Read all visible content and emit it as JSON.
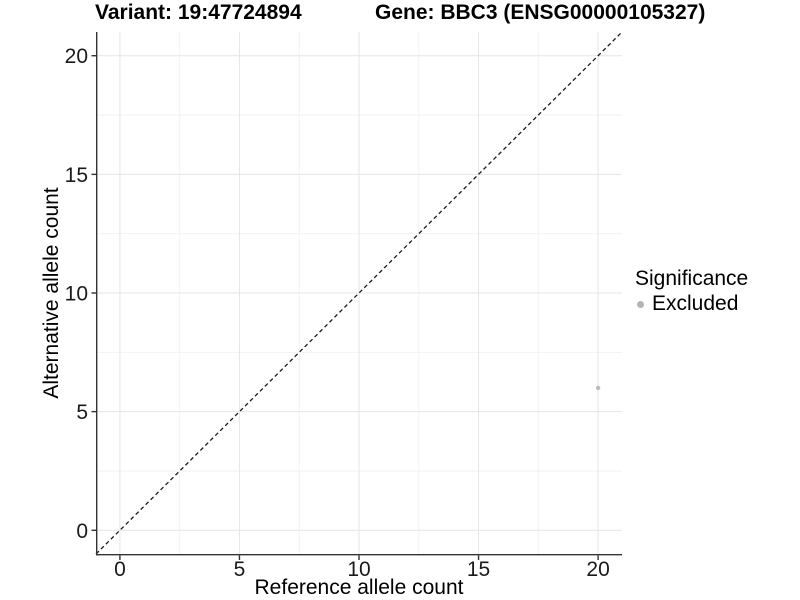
{
  "chart_data": {
    "type": "scatter",
    "title_left": "Variant: 19:47724894",
    "title_right": "Gene: BBC3 (ENSG00000105327)",
    "xlabel": "Reference allele count",
    "ylabel": "Alternative allele count",
    "xlim": [
      -1,
      21
    ],
    "ylim": [
      -1,
      21
    ],
    "xticks": [
      0,
      5,
      10,
      15,
      20
    ],
    "yticks": [
      0,
      5,
      10,
      15,
      20
    ],
    "minor_grid_step": 2.5,
    "grid": "major and minor gridlines, very light gray",
    "points": [
      {
        "x": 20,
        "y": 6,
        "significance": "Excluded",
        "color": "#bdbdbd"
      }
    ],
    "reference_line": {
      "description": "identity line y = x",
      "style": "dashed",
      "from": [
        -1,
        -1
      ],
      "to": [
        21,
        21
      ]
    },
    "legend": {
      "title": "Significance",
      "position": "right",
      "entries": [
        {
          "label": "Excluded",
          "marker": "circle",
          "color": "#b4b4b4"
        }
      ]
    }
  },
  "colors": {
    "background": "#ffffff",
    "axis_line": "#333333",
    "tick_text": "#1a1a1a",
    "grid_major": "#e6e6e6",
    "grid_minor": "#f2f2f2",
    "identity_line": "#1a1a1a"
  }
}
